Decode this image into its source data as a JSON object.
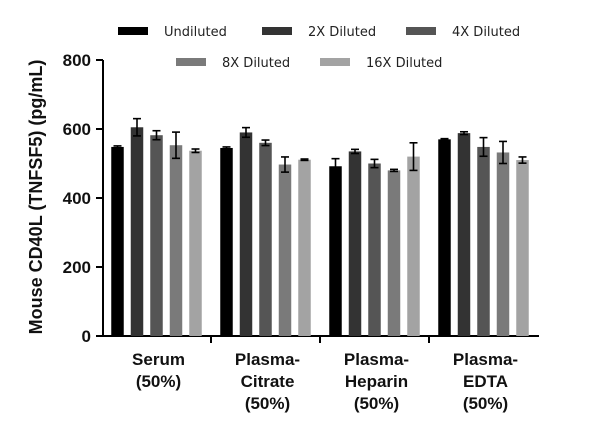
{
  "chart_data": {
    "type": "bar",
    "title": "",
    "xlabel": "",
    "ylabel": "Mouse CD40L (TNFSF5) (pg/mL)",
    "ylim": [
      0,
      800
    ],
    "yticks": [
      0,
      200,
      400,
      600,
      800
    ],
    "grid": false,
    "legend_position": "top",
    "categories": [
      [
        "Serum",
        "(50%)"
      ],
      [
        "Plasma-",
        "Citrate",
        "(50%)"
      ],
      [
        "Plasma-",
        "Heparin",
        "(50%)"
      ],
      [
        "Plasma-",
        "EDTA",
        "(50%)"
      ]
    ],
    "series": [
      {
        "name": "Undiluted",
        "color": "#000000",
        "values": [
          548,
          545,
          492,
          570
        ],
        "errors": [
          3,
          3,
          22,
          2
        ]
      },
      {
        "name": "2X Diluted",
        "color": "#333333",
        "values": [
          605,
          590,
          535,
          588
        ],
        "errors": [
          25,
          14,
          6,
          4
        ]
      },
      {
        "name": "4X Diluted",
        "color": "#555555",
        "values": [
          582,
          560,
          500,
          548
        ],
        "errors": [
          13,
          8,
          12,
          27
        ]
      },
      {
        "name": "8X Diluted",
        "color": "#7a7a7a",
        "values": [
          553,
          497,
          480,
          532
        ],
        "errors": [
          38,
          22,
          3,
          32
        ]
      },
      {
        "name": "16X Diluted",
        "color": "#a3a3a3",
        "values": [
          537,
          511,
          520,
          510
        ],
        "errors": [
          5,
          2,
          40,
          9
        ]
      }
    ]
  }
}
